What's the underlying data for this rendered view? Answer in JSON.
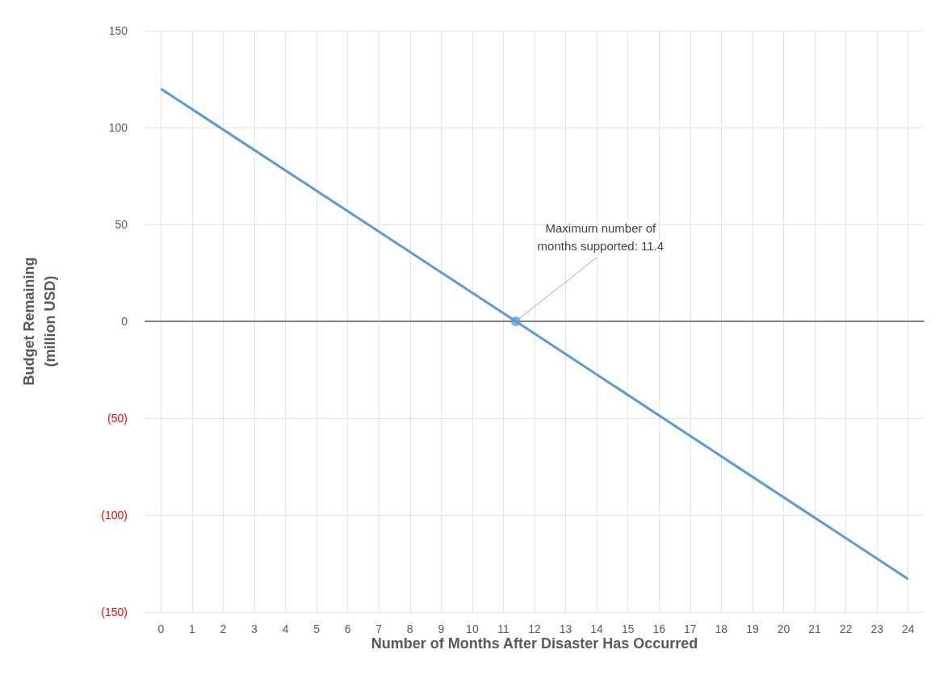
{
  "chart_data": {
    "type": "line",
    "xlabel": "Number of Months After Disaster Has Occurred",
    "ylabel": "Budget Remaining\n(million USD)",
    "x": [
      0,
      11.4,
      24
    ],
    "series": [
      {
        "color": "#5b9bd5",
        "values": [
          120,
          0,
          -133
        ]
      }
    ],
    "xlim": [
      -0.5,
      24.5
    ],
    "xticks": [
      0,
      1,
      2,
      3,
      4,
      5,
      6,
      7,
      8,
      9,
      10,
      11,
      12,
      13,
      14,
      15,
      16,
      17,
      18,
      19,
      20,
      21,
      22,
      23,
      24
    ],
    "ylim": [
      -150,
      150
    ],
    "yticks": [
      {
        "value": -150,
        "label": "(150)"
      },
      {
        "value": -100,
        "label": "(100)"
      },
      {
        "value": -50,
        "label": "(50)"
      },
      0,
      50,
      100,
      150
    ],
    "annotations": [
      {
        "text": "Maximum number of\nmonths supported: 11.4",
        "x": 11.4,
        "y": 0
      }
    ],
    "grid": true,
    "marker": "none",
    "line_style": "solid"
  }
}
